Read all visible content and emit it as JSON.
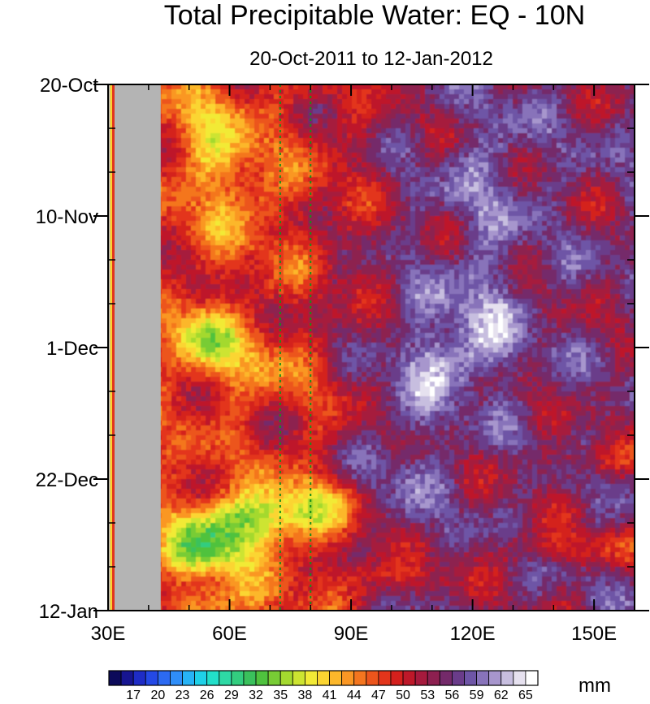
{
  "chart_data": {
    "type": "heatmap",
    "title": "Total Precipitable Water: EQ - 10N",
    "subtitle": "20-Oct-2011 to 12-Jan-2012",
    "xlabel": "",
    "ylabel": "",
    "x_range": [
      30,
      160
    ],
    "x_ticks": [
      {
        "value": 30,
        "label": "30E"
      },
      {
        "value": 60,
        "label": "60E"
      },
      {
        "value": 90,
        "label": "90E"
      },
      {
        "value": 120,
        "label": "120E"
      },
      {
        "value": 150,
        "label": "150E"
      }
    ],
    "y_ticks": [
      {
        "day": 0,
        "label": "20-Oct"
      },
      {
        "day": 21,
        "label": "10-Nov"
      },
      {
        "day": 42,
        "label": "1-Dec"
      },
      {
        "day": 63,
        "label": "22-Dec"
      },
      {
        "day": 84,
        "label": "12-Jan"
      }
    ],
    "y_range": [
      "20-Oct-2011",
      "12-Jan-2012"
    ],
    "y_direction": "time increases downward",
    "colorbar": {
      "units": "mm",
      "labels": [
        17,
        20,
        23,
        26,
        29,
        32,
        35,
        38,
        41,
        44,
        47,
        50,
        53,
        56,
        59,
        62,
        65
      ],
      "levels": [
        15.5,
        17,
        18.5,
        20,
        21.5,
        23,
        24.5,
        26,
        27.5,
        29,
        30.5,
        32,
        33.5,
        35,
        36.5,
        38,
        39.5,
        41,
        42.5,
        44,
        45.5,
        47,
        48.5,
        50,
        51.5,
        53,
        54.5,
        56,
        57.5,
        59,
        60.5,
        62,
        63.5,
        65
      ],
      "colors": [
        "#0c0a5a",
        "#171591",
        "#1e2cc6",
        "#2449e6",
        "#2c6af2",
        "#2f8ef8",
        "#27b3f5",
        "#1fd1e8",
        "#22dfca",
        "#2ed9a5",
        "#33cd7f",
        "#3ac15c",
        "#4fc23e",
        "#78cc35",
        "#a4d92f",
        "#cde431",
        "#f2ea36",
        "#fbd531",
        "#fcb72a",
        "#fa9724",
        "#f4761f",
        "#ec551c",
        "#e3351b",
        "#d4201d",
        "#be1829",
        "#a61a3d",
        "#8d2050",
        "#742a6a",
        "#6a3c8a",
        "#6e55a6",
        "#8873ba",
        "#a796cd",
        "#c7bedf",
        "#e6e1ef",
        "#ffffff"
      ]
    },
    "missing_region": {
      "color": "#b4b4b4",
      "x_range": [
        30.5,
        43
      ]
    },
    "reference_lines": [
      {
        "x": 72.5,
        "color": "#1a8c1a",
        "style": "dotted"
      },
      {
        "x": 80,
        "color": "#1a8c1a",
        "style": "dotted"
      }
    ],
    "field_description_blobs_mm": [
      {
        "x": 43,
        "day": 0,
        "value": 52
      },
      {
        "x": 55,
        "day": 10,
        "value": 43
      },
      {
        "x": 52,
        "day": 40,
        "value": 38
      },
      {
        "x": 60,
        "day": 70,
        "value": 30
      },
      {
        "x": 70,
        "day": 66,
        "value": 33
      },
      {
        "x": 110,
        "day": 46,
        "value": 60
      },
      {
        "x": 118,
        "day": 36,
        "value": 58
      },
      {
        "x": 140,
        "day": 20,
        "value": 53
      },
      {
        "x": 150,
        "day": 70,
        "value": 47
      }
    ]
  }
}
